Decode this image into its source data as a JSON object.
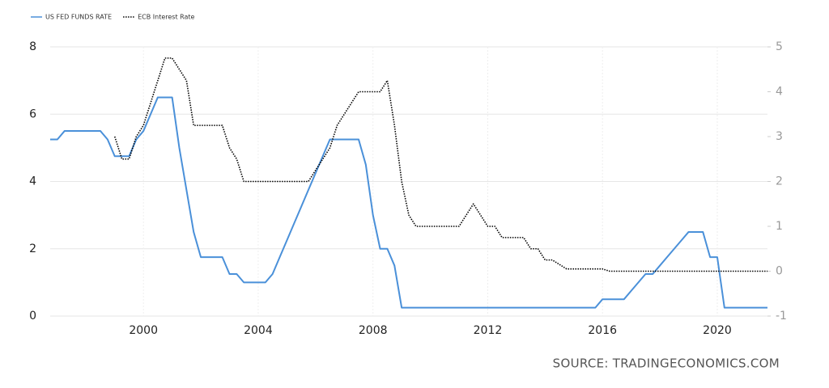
{
  "chart_data": {
    "type": "line",
    "source": "SOURCE: TRADINGECONOMICS.COM",
    "x": [
      1996.75,
      1997,
      1997.25,
      1997.5,
      1997.75,
      1998,
      1998.25,
      1998.5,
      1998.75,
      1999,
      1999.25,
      1999.5,
      1999.75,
      2000,
      2000.25,
      2000.5,
      2000.75,
      2001,
      2001.25,
      2001.5,
      2001.75,
      2002,
      2002.25,
      2002.5,
      2002.75,
      2003,
      2003.25,
      2003.5,
      2003.75,
      2004,
      2004.25,
      2004.5,
      2004.75,
      2005,
      2005.25,
      2005.5,
      2005.75,
      2006,
      2006.25,
      2006.5,
      2006.75,
      2007,
      2007.25,
      2007.5,
      2007.75,
      2008,
      2008.25,
      2008.5,
      2008.75,
      2009,
      2009.25,
      2009.5,
      2009.75,
      2010,
      2010.25,
      2010.5,
      2010.75,
      2011,
      2011.25,
      2011.5,
      2011.75,
      2012,
      2012.25,
      2012.5,
      2012.75,
      2013,
      2013.25,
      2013.5,
      2013.75,
      2014,
      2014.25,
      2014.5,
      2014.75,
      2015,
      2015.25,
      2015.5,
      2015.75,
      2016,
      2016.25,
      2016.5,
      2016.75,
      2017,
      2017.25,
      2017.5,
      2017.75,
      2018,
      2018.25,
      2018.5,
      2018.75,
      2019,
      2019.25,
      2019.5,
      2019.75,
      2020,
      2020.25,
      2020.5,
      2020.75,
      2021,
      2021.25,
      2021.5,
      2021.75
    ],
    "series": [
      {
        "name": "US FED FUNDS RATE",
        "color": "#4a90d9",
        "style": "solid",
        "values": [
          5.25,
          5.25,
          5.5,
          5.5,
          5.5,
          5.5,
          5.5,
          5.5,
          5.25,
          4.75,
          4.75,
          4.75,
          5.25,
          5.5,
          6.0,
          6.5,
          6.5,
          6.5,
          5.0,
          3.75,
          2.5,
          1.75,
          1.75,
          1.75,
          1.75,
          1.25,
          1.25,
          1.0,
          1.0,
          1.0,
          1.0,
          1.25,
          1.75,
          2.25,
          2.75,
          3.25,
          3.75,
          4.25,
          4.75,
          5.25,
          5.25,
          5.25,
          5.25,
          5.25,
          4.5,
          3.0,
          2.0,
          2.0,
          1.5,
          0.25,
          0.25,
          0.25,
          0.25,
          0.25,
          0.25,
          0.25,
          0.25,
          0.25,
          0.25,
          0.25,
          0.25,
          0.25,
          0.25,
          0.25,
          0.25,
          0.25,
          0.25,
          0.25,
          0.25,
          0.25,
          0.25,
          0.25,
          0.25,
          0.25,
          0.25,
          0.25,
          0.25,
          0.5,
          0.5,
          0.5,
          0.5,
          0.75,
          1.0,
          1.25,
          1.25,
          1.5,
          1.75,
          2.0,
          2.25,
          2.5,
          2.5,
          2.5,
          1.75,
          1.75,
          0.25,
          0.25,
          0.25,
          0.25,
          0.25,
          0.25,
          0.25
        ]
      },
      {
        "name": "ECB Interest Rate",
        "color": "#000000",
        "style": "dotted",
        "axis": "y2",
        "values": [
          null,
          null,
          null,
          null,
          null,
          null,
          null,
          null,
          null,
          3.0,
          2.5,
          2.5,
          3.0,
          3.25,
          3.75,
          4.25,
          4.75,
          4.75,
          4.5,
          4.25,
          3.25,
          3.25,
          3.25,
          3.25,
          3.25,
          2.75,
          2.5,
          2.0,
          2.0,
          2.0,
          2.0,
          2.0,
          2.0,
          2.0,
          2.0,
          2.0,
          2.0,
          2.25,
          2.5,
          2.75,
          3.25,
          3.5,
          3.75,
          4.0,
          4.0,
          4.0,
          4.0,
          4.25,
          3.25,
          2.0,
          1.25,
          1.0,
          1.0,
          1.0,
          1.0,
          1.0,
          1.0,
          1.0,
          1.25,
          1.5,
          1.25,
          1.0,
          1.0,
          0.75,
          0.75,
          0.75,
          0.75,
          0.5,
          0.5,
          0.25,
          0.25,
          0.15,
          0.05,
          0.05,
          0.05,
          0.05,
          0.05,
          0.05,
          0,
          0,
          0,
          0,
          0,
          0,
          0,
          0,
          0,
          0,
          0,
          0,
          0,
          0,
          0,
          0,
          0,
          0,
          0,
          0,
          0,
          0,
          0
        ]
      }
    ],
    "xlim": [
      1996.75,
      2021.75
    ],
    "xticks": [
      2000,
      2004,
      2008,
      2012,
      2016,
      2020
    ],
    "ylim": [
      0,
      8
    ],
    "yticks": [
      0,
      2,
      4,
      6,
      8
    ],
    "y2lim": [
      -1,
      5
    ],
    "y2ticks": [
      -1,
      0,
      1,
      2,
      3,
      4,
      5
    ],
    "grid": true,
    "legend": "top-left"
  }
}
